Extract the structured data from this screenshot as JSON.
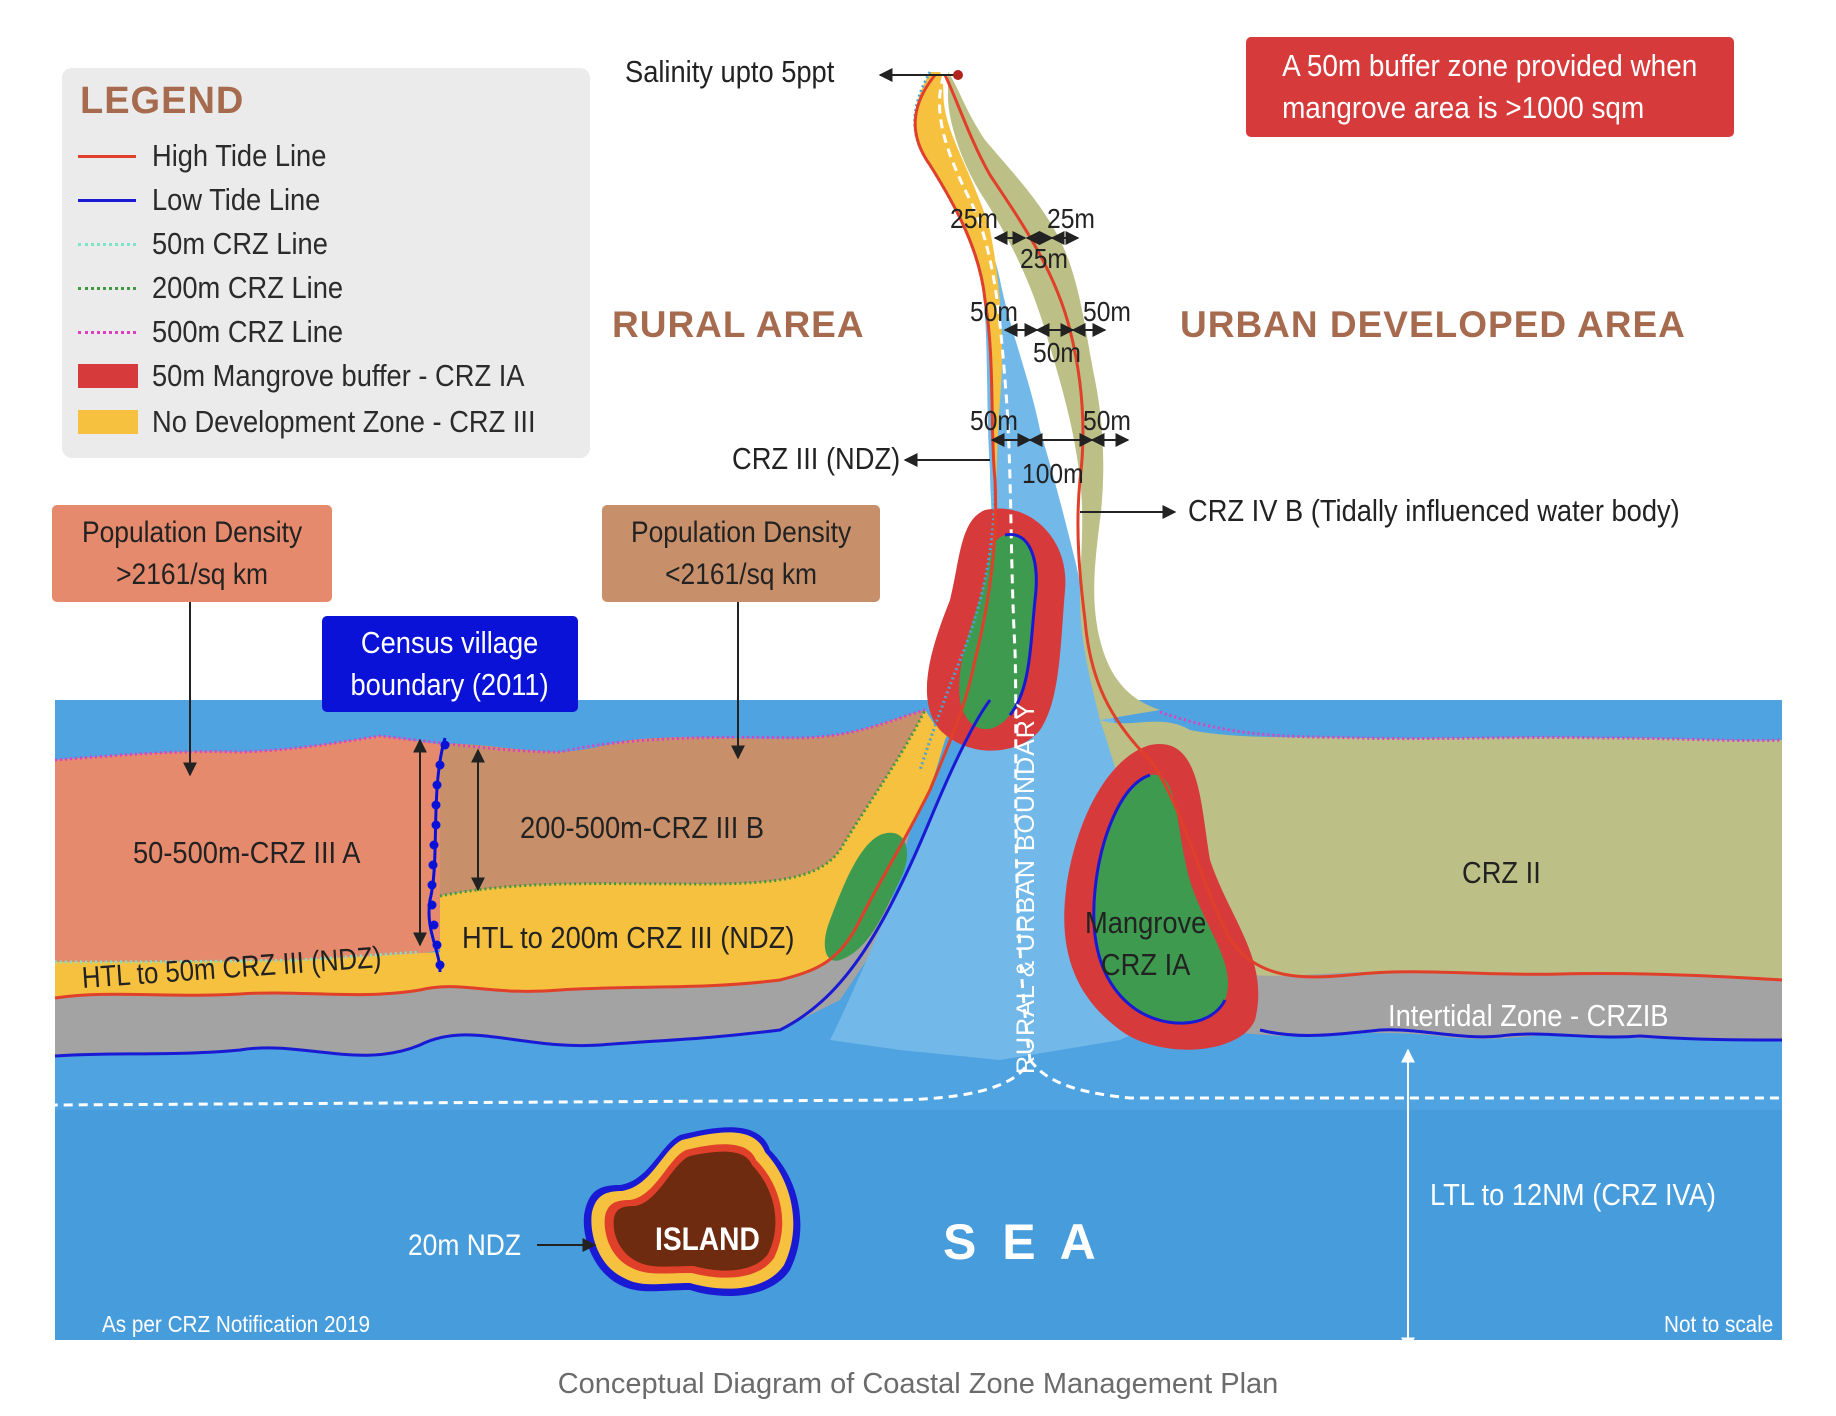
{
  "legend": {
    "title": "LEGEND",
    "items": [
      {
        "label": "High Tide Line",
        "color": "#e0402a",
        "style": "solid"
      },
      {
        "label": "Low Tide Line",
        "color": "#1a1ad4",
        "style": "solid"
      },
      {
        "label": "50m CRZ Line",
        "color": "#7fe3c8",
        "style": "dotted"
      },
      {
        "label": "200m CRZ Line",
        "color": "#3f9a3f",
        "style": "dotted"
      },
      {
        "label": "500m CRZ Line",
        "color": "#e040c0",
        "style": "dotted"
      },
      {
        "label": "50m Mangrove buffer - CRZ IA",
        "color": "#d63a3a",
        "style": "fill"
      },
      {
        "label": "No Development Zone - CRZ III",
        "color": "#f5c13f",
        "style": "fill"
      }
    ]
  },
  "notes": {
    "buffer": "A 50m buffer zone provided when\nmangrove area is >1000 sqm",
    "salinity": "Salinity upto 5ppt"
  },
  "areas": {
    "rural": "RURAL AREA",
    "urban": "URBAN DEVELOPED AREA",
    "sea": "S E A",
    "island": "ISLAND"
  },
  "boxes": {
    "pop_high": "Population Density\n>2161/sq km",
    "pop_low": "Population Density\n<2161/sq km",
    "census": "Census village\nboundary (2011)"
  },
  "zones": {
    "crz_iii_a": "50-500m-CRZ III A",
    "crz_iii_b": "200-500m-CRZ III B",
    "htl_200": "HTL to 200m CRZ III (NDZ)",
    "htl_50": "HTL to 50m CRZ III (NDZ)",
    "crz_ii": "CRZ II",
    "mangrove": "Mangrove\nCRZ IA",
    "intertidal": "Intertidal Zone - CRZIB",
    "ltl": "LTL to 12NM (CRZ IVA)",
    "ndz_20": "20m NDZ",
    "crz_iii_ndz": "CRZ III (NDZ)",
    "crz_ivb": "CRZ IV B (Tidally influenced water body)",
    "boundary": "RURAL & URBAN BOUNDARY"
  },
  "dimensions": {
    "d25_left": "25m",
    "d25_right": "25m",
    "d25_mid": "25m",
    "d50a_left": "50m",
    "d50a_right": "50m",
    "d50a_mid": "50m",
    "d50b_left": "50m",
    "d50b_right": "50m",
    "d100": "100m"
  },
  "footer": {
    "source": "As per CRZ Notification 2019",
    "scale": "Not to scale",
    "caption": "Conceptual Diagram of Coastal Zone Management Plan"
  },
  "colors": {
    "sea": "#4ea3e0",
    "creek": "#72b8e8",
    "crz_iii_a": "#e58a6c",
    "crz_iii_b": "#c8906a",
    "ndz": "#f5c13f",
    "crz_ii": "#bcc086",
    "intertidal": "#a3a3a3",
    "mangrove": "#3e9a4e",
    "buffer": "#d63a3a",
    "island": "#6e2b10",
    "buffer_note": "#d63a3a",
    "census": "#0a12d8"
  }
}
